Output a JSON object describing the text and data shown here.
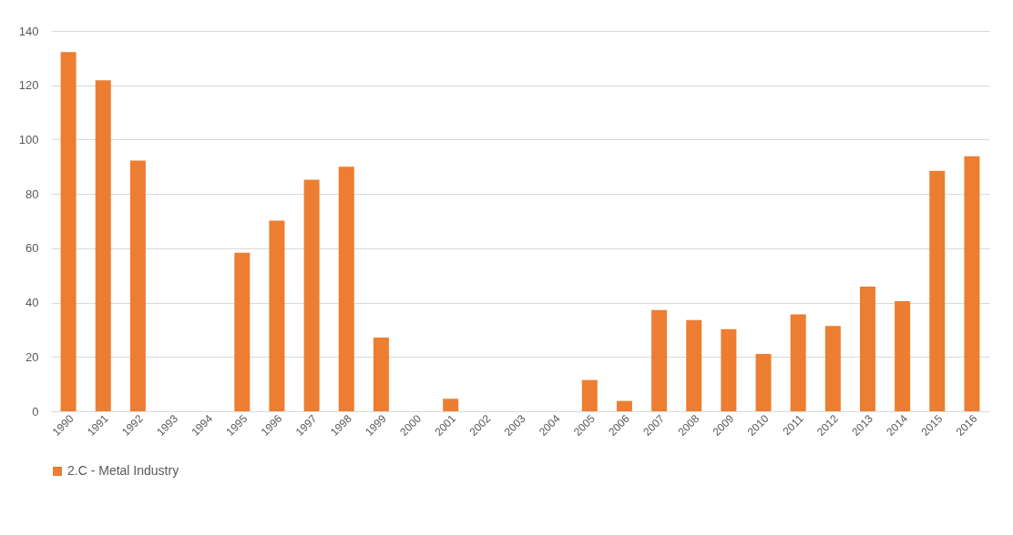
{
  "chart_data": {
    "type": "bar",
    "categories": [
      "1990",
      "1991",
      "1992",
      "1993",
      "1994",
      "1995",
      "1996",
      "1997",
      "1998",
      "1999",
      "2000",
      "2001",
      "2002",
      "2003",
      "2004",
      "2005",
      "2006",
      "2007",
      "2008",
      "2009",
      "2010",
      "2011",
      "2012",
      "2013",
      "2014",
      "2015",
      "2016"
    ],
    "series": [
      {
        "name": "2.C - Metal Industry",
        "color": "#ed7d31",
        "values": [
          132.2,
          121.8,
          92.3,
          0,
          0,
          58.4,
          70.2,
          85.2,
          90.0,
          27.1,
          0,
          4.6,
          0,
          0,
          0,
          11.5,
          3.8,
          37.3,
          33.6,
          30.2,
          21.1,
          35.7,
          31.4,
          45.9,
          40.5,
          88.5,
          93.9
        ]
      }
    ],
    "ylim": [
      0,
      140
    ],
    "yticks": [
      0,
      20,
      40,
      60,
      80,
      100,
      120,
      140
    ],
    "grid": "y",
    "legend": "bottom"
  }
}
